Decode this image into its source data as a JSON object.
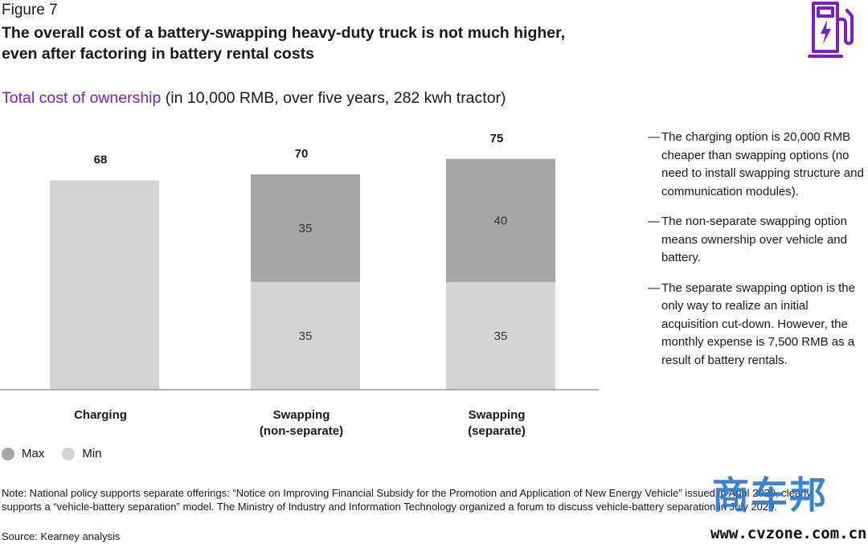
{
  "header": {
    "figure_label": "Figure 7",
    "title_line1": "The overall cost of a battery-swapping heavy-duty truck is not much higher,",
    "title_line2": "even after factoring in battery rental costs",
    "subtitle_accent": "Total cost of ownership",
    "subtitle_rest": " (in 10,000 RMB, over five years, 282 kwh tractor)"
  },
  "icon": {
    "name": "ev-charging-station-icon",
    "color": "#7b1fd1"
  },
  "chart_data": {
    "type": "bar",
    "stacked": true,
    "categories": [
      [
        "Charging"
      ],
      [
        "Swapping",
        "(non-separate)"
      ],
      [
        "Swapping",
        "(separate)"
      ]
    ],
    "series": [
      {
        "name": "Min",
        "color": "#d4d4d4",
        "values": [
          68,
          35,
          35
        ],
        "labels": [
          "",
          "35",
          "35"
        ]
      },
      {
        "name": "Max",
        "color": "#a6a6a6",
        "values": [
          0,
          35,
          40
        ],
        "labels": [
          "",
          "35",
          "40"
        ]
      }
    ],
    "totals": [
      68,
      70,
      75
    ],
    "ylim": [
      0,
      80
    ],
    "grid": false,
    "legend_position": "bottom-left"
  },
  "legend": {
    "items": [
      {
        "label": "Max",
        "color": "#a6a6a6"
      },
      {
        "label": "Min",
        "color": "#d4d4d4"
      }
    ]
  },
  "notes": [
    {
      "dash": "—",
      "text": "The charging option is 20,000 RMB cheaper than swapping options (no need to install swapping structure and communication modules)."
    },
    {
      "dash": "—",
      "text": "The non-separate swapping option means ownership over vehicle and battery."
    },
    {
      "dash": "—",
      "text": "The separate swapping option is the only way to realize an initial acquisition cut-down. However, the monthly expense is 7,500 RMB as a result of battery rentals."
    }
  ],
  "footnote": "Note: National policy supports separate offerings: “Notice on Improving Financial Subsidy for the Promotion and Application of New Energy Vehicle” issued in April 2020, clearly supports a “vehicle-battery separation” model. The Ministry of Industry and Information Technology organized a forum to discuss vehicle-battery separation in July 2020.",
  "source": "Source: Kearney analysis",
  "watermark": {
    "logo": "商车邦",
    "url": "www.cvzone.com.cn"
  }
}
